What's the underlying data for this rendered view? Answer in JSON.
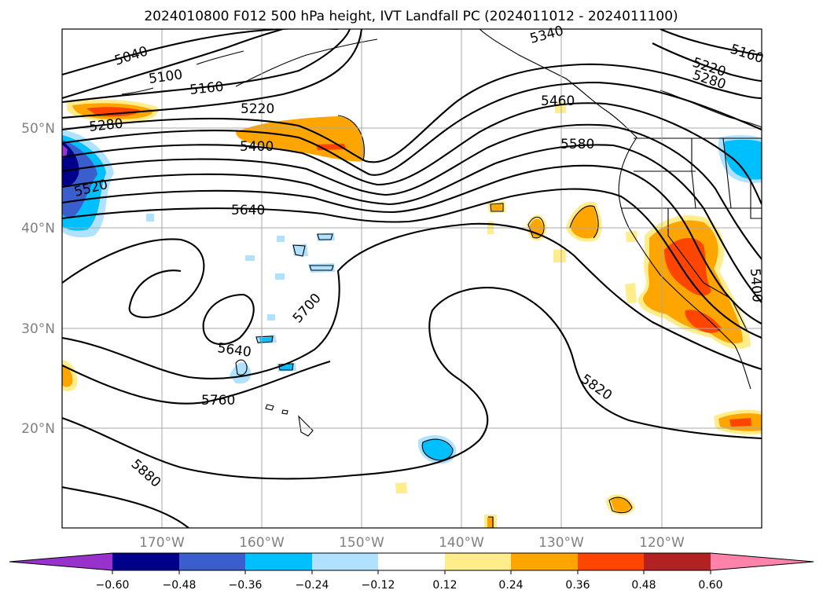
{
  "title": "2024010800 F012 500 hPa height, IVT Landfall PC (2024011012 - 2024011100)",
  "colors": {
    "neg_extend": "#9932cc",
    "neg_060": "#00008b",
    "neg_048": "#3a5fcd",
    "neg_036": "#00bfff",
    "neg_024": "#b0e2ff",
    "neutral": "#ffffff",
    "pos_012": "#ffec8b",
    "pos_024": "#ffa500",
    "pos_036": "#ff4500",
    "pos_048": "#b22222",
    "pos_extend": "#ff82ab"
  },
  "map": {
    "lat_ticks": [
      "50°N",
      "40°N",
      "30°N",
      "20°N"
    ],
    "lon_ticks": [
      "170°W",
      "160°W",
      "150°W",
      "140°W",
      "130°W",
      "120°W"
    ]
  },
  "contour_labels": [
    "5040",
    "5100",
    "5160",
    "5220",
    "5280",
    "5340",
    "5400",
    "5460",
    "5520",
    "5580",
    "5640",
    "5700",
    "5760",
    "5820",
    "5880"
  ],
  "colorbar": {
    "ticks": [
      "−0.60",
      "−0.48",
      "−0.36",
      "−0.24",
      "−0.12",
      "0.12",
      "0.24",
      "0.36",
      "0.48",
      "0.60"
    ]
  }
}
